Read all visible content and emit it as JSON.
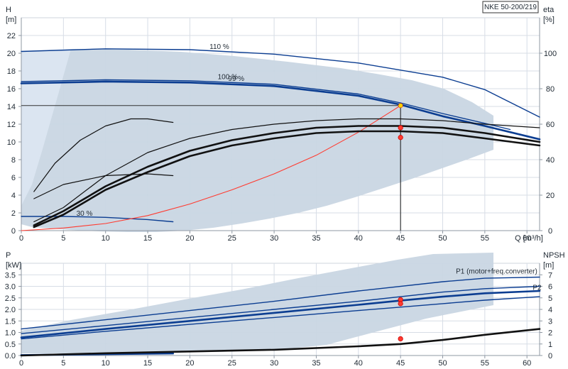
{
  "chart_data": [
    {
      "type": "line",
      "title": "NKE 50-200/219",
      "x_axis": {
        "label": "Q [m³/h]",
        "range": [
          0,
          61.5
        ],
        "ticks": [
          0,
          5,
          10,
          15,
          20,
          25,
          30,
          35,
          40,
          45,
          50,
          55,
          60
        ]
      },
      "y_axis_left": {
        "label_line1": "H",
        "label_line2": "[m]",
        "range": [
          0,
          24
        ],
        "ticks": [
          0,
          2,
          4,
          6,
          8,
          10,
          12,
          14,
          16,
          18,
          20,
          22
        ]
      },
      "y_axis_right": {
        "label_line1": "eta",
        "label_line2": "[%]",
        "range": [
          0,
          120
        ],
        "ticks": [
          0,
          20,
          40,
          60,
          80,
          100
        ]
      },
      "grid": true,
      "annotations": [
        {
          "text": "110 %",
          "x": 23.5,
          "y": 20.5
        },
        {
          "text": "100 %",
          "x": 24.5,
          "y": 17.1
        },
        {
          "text": "99 %",
          "x": 25.5,
          "y": 16.9
        },
        {
          "text": "30 %",
          "x": 7.5,
          "y": 1.7
        }
      ],
      "series": [
        {
          "id": "head_110",
          "x": [
            0,
            10,
            20,
            30,
            40,
            50,
            55,
            61.5
          ],
          "y": [
            20.2,
            20.5,
            20.4,
            19.9,
            18.9,
            17.3,
            15.9,
            12.8
          ],
          "color": "#0b3d91",
          "axis": "left",
          "style": "blue"
        },
        {
          "id": "head_100",
          "x": [
            0,
            10,
            20,
            30,
            40,
            45,
            50,
            55,
            61.5
          ],
          "y": [
            16.6,
            16.8,
            16.7,
            16.3,
            15.2,
            14.2,
            12.9,
            11.8,
            10.3
          ],
          "color": "#0b3d91",
          "axis": "left",
          "style": "blueThick"
        },
        {
          "id": "head_99",
          "x": [
            0,
            10,
            20,
            30,
            40,
            45,
            50,
            55,
            58
          ],
          "y": [
            16.8,
            17.0,
            16.9,
            16.5,
            15.4,
            14.4,
            13.2,
            12.1,
            11.4
          ],
          "color": "#0b3d91",
          "axis": "left",
          "style": "blue"
        },
        {
          "id": "head_30",
          "x": [
            0,
            5,
            10,
            15,
            18
          ],
          "y": [
            1.6,
            1.6,
            1.5,
            1.25,
            1.0
          ],
          "color": "#0b3d91",
          "axis": "left",
          "style": "blue"
        },
        {
          "id": "system_curve",
          "x": [
            0,
            5,
            10,
            15,
            20,
            25,
            30,
            35,
            40,
            45
          ],
          "y": [
            0,
            0.3,
            0.8,
            1.7,
            3.0,
            4.6,
            6.4,
            8.5,
            11.1,
            14.1
          ],
          "color": "#ff3b30",
          "axis": "left",
          "style": "red"
        },
        {
          "id": "eta_upper",
          "x": [
            1.5,
            5,
            10,
            15,
            20,
            25,
            30,
            35,
            40,
            45,
            50,
            55,
            61.5
          ],
          "y": [
            5,
            13,
            31,
            44,
            52,
            57,
            60,
            62,
            63,
            63,
            62,
            60,
            58
          ],
          "color": "#111111",
          "axis": "right",
          "style": "thinBlack"
        },
        {
          "id": "eta_main_1",
          "x": [
            1.5,
            5,
            10,
            15,
            20,
            25,
            30,
            35,
            40,
            45,
            50,
            55,
            61.5
          ],
          "y": [
            3,
            11,
            25,
            36,
            45,
            51,
            55,
            58,
            59,
            59,
            58,
            55,
            50
          ],
          "color": "#111111",
          "axis": "right",
          "style": "thickBlack"
        },
        {
          "id": "eta_main_2",
          "x": [
            1.5,
            5,
            10,
            15,
            20,
            25,
            30,
            35,
            40,
            45,
            50,
            55,
            61.5
          ],
          "y": [
            2,
            9,
            23,
            33,
            42,
            48,
            52,
            55,
            56,
            56,
            55,
            52,
            48
          ],
          "color": "#111111",
          "axis": "right",
          "style": "thickBlack"
        },
        {
          "id": "eta_low",
          "x": [
            1.5,
            5,
            10,
            15,
            18
          ],
          "y": [
            18,
            26,
            31,
            32,
            31
          ],
          "color": "#111111",
          "axis": "right",
          "style": "thinBlack"
        },
        {
          "id": "eta_early",
          "x": [
            1.5,
            4,
            7,
            10,
            13,
            15,
            18
          ],
          "y": [
            22,
            38,
            51,
            59,
            63,
            63,
            61
          ],
          "color": "#111111",
          "axis": "right",
          "style": "thinBlack"
        }
      ],
      "points": [
        {
          "id": "duty_head",
          "x": 45,
          "y": 14.1,
          "axis": "left",
          "color": "#ffd400"
        },
        {
          "id": "duty_eta_1",
          "x": 45,
          "y": 58.0,
          "axis": "right",
          "color": "#ff3b30"
        },
        {
          "id": "duty_eta_2",
          "x": 45,
          "y": 52.5,
          "axis": "right",
          "color": "#ff3b30"
        }
      ]
    },
    {
      "type": "line",
      "x_axis": {
        "range": [
          0,
          61.5
        ],
        "ticks": [
          0,
          5,
          10,
          15,
          20,
          25,
          30,
          35,
          40,
          45,
          50,
          55,
          60
        ]
      },
      "y_axis_left": {
        "label_line1": "P",
        "label_line2": "[kW]",
        "range": [
          0,
          4.0
        ],
        "ticks": [
          0.0,
          0.5,
          1.0,
          1.5,
          2.0,
          2.5,
          3.0,
          3.5
        ]
      },
      "y_axis_right": {
        "label_line1": "NPSH",
        "label_line2": "[m]",
        "range": [
          0,
          8
        ],
        "ticks": [
          0,
          1,
          2,
          3,
          4,
          5,
          6,
          7
        ]
      },
      "grid": true,
      "annotations": [
        {
          "text": "P1 (motor+freq.converter)",
          "x": 56.4,
          "y": 3.55
        },
        {
          "text": "P2",
          "x": 61.2,
          "y": 2.85
        }
      ],
      "series": [
        {
          "id": "P1_upper",
          "x": [
            0,
            10,
            20,
            30,
            40,
            50,
            55,
            61.5
          ],
          "y": [
            1.15,
            1.55,
            1.95,
            2.35,
            2.8,
            3.2,
            3.35,
            3.4
          ],
          "color": "#0b3d91",
          "axis": "left",
          "style": "blue"
        },
        {
          "id": "P1_mid",
          "x": [
            0,
            10,
            20,
            30,
            40,
            50,
            55,
            61.5
          ],
          "y": [
            0.95,
            1.3,
            1.65,
            2.0,
            2.35,
            2.75,
            2.9,
            3.0
          ],
          "color": "#0b3d91",
          "axis": "left",
          "style": "blue"
        },
        {
          "id": "P2_main",
          "x": [
            0,
            10,
            20,
            30,
            40,
            45,
            50,
            55,
            61.5
          ],
          "y": [
            0.78,
            1.15,
            1.5,
            1.85,
            2.2,
            2.38,
            2.55,
            2.7,
            2.8
          ],
          "color": "#0b3d91",
          "axis": "left",
          "style": "blueThick"
        },
        {
          "id": "P2_low",
          "x": [
            0,
            10,
            20,
            30,
            40,
            45,
            50,
            55,
            61.5
          ],
          "y": [
            0.72,
            1.05,
            1.35,
            1.65,
            1.95,
            2.1,
            2.25,
            2.4,
            2.55
          ],
          "color": "#0b3d91",
          "axis": "left",
          "style": "blue"
        },
        {
          "id": "P30",
          "x": [
            0,
            5,
            10,
            15,
            18
          ],
          "y": [
            0.02,
            0.04,
            0.06,
            0.08,
            0.09
          ],
          "color": "#0b3d91",
          "axis": "left",
          "style": "blueThick"
        },
        {
          "id": "NPSH",
          "x": [
            0,
            10,
            20,
            30,
            40,
            45,
            50,
            55,
            61.5
          ],
          "y": [
            0.0,
            0.2,
            0.35,
            0.5,
            0.8,
            1.0,
            1.35,
            1.8,
            2.3
          ],
          "color": "#111111",
          "axis": "right",
          "style": "thickBlack"
        }
      ],
      "points": [
        {
          "id": "duty_P1",
          "x": 45,
          "y": 2.42,
          "axis": "left",
          "color": "#ff3b30"
        },
        {
          "id": "duty_P2",
          "x": 45,
          "y": 2.25,
          "axis": "left",
          "color": "#ff3b30"
        },
        {
          "id": "duty_NPSH",
          "x": 45,
          "y": 1.45,
          "axis": "right",
          "color": "#ff3b30"
        }
      ]
    }
  ]
}
